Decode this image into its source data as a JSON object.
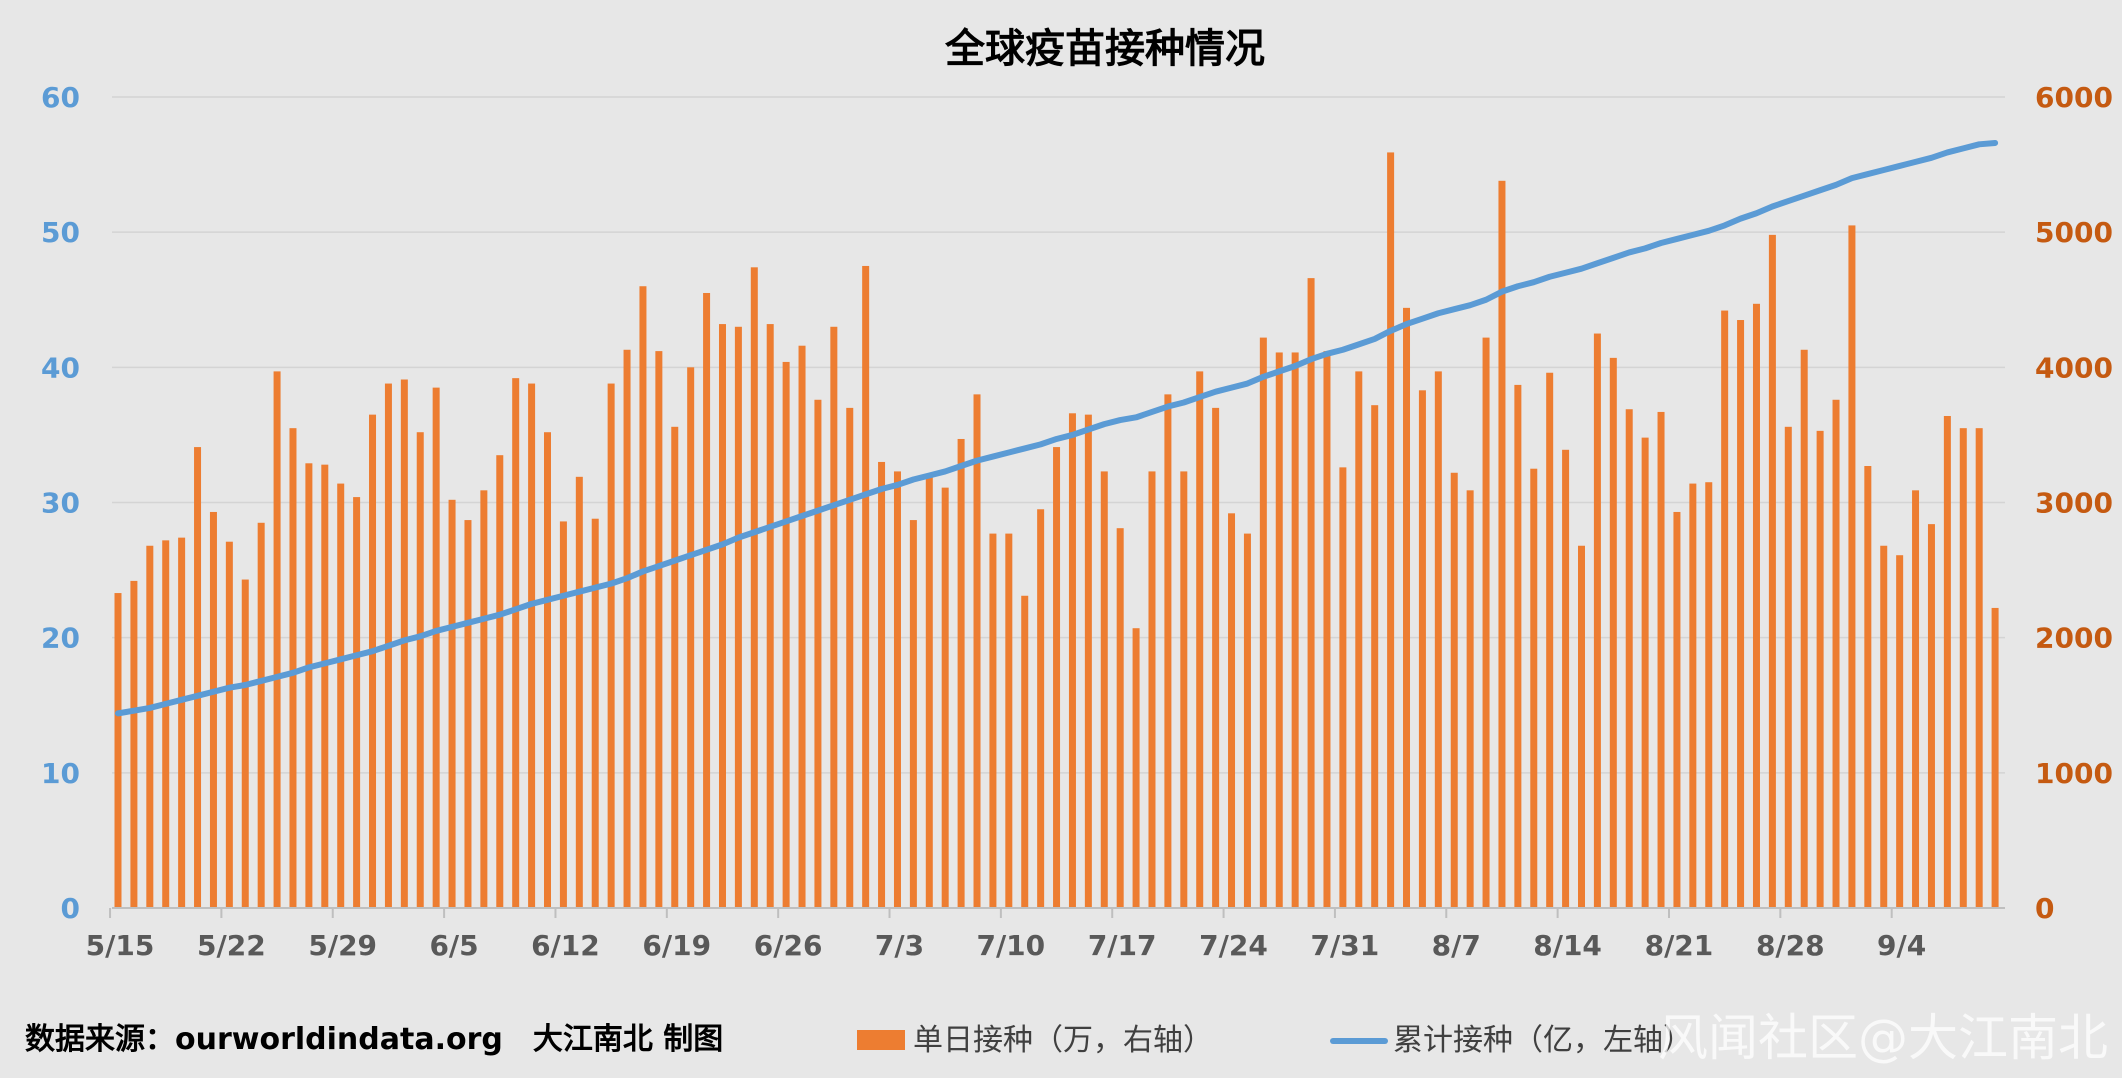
{
  "chart_data": {
    "type": "bar+line",
    "title": "全球疫苗接种情况",
    "source": "数据来源：ourworldindata.org　大江南北 制图",
    "watermark": "风闻社区@大江南北",
    "colors": {
      "bar": "#ed7d31",
      "line": "#5b9bd5",
      "left_axis": "#5b9bd5",
      "right_axis": "#c55a11",
      "grid": "#d4d4d4"
    },
    "left_axis": {
      "min": 0,
      "max": 60,
      "ticks": [
        "0",
        "10",
        "20",
        "30",
        "40",
        "50",
        "60"
      ]
    },
    "right_axis": {
      "min": 0,
      "max": 6000,
      "ticks": [
        "0",
        "1000",
        "2000",
        "3000",
        "4000",
        "5000",
        "6000"
      ]
    },
    "x_axis": {
      "start": "5/15",
      "tick_labels": [
        "5/15",
        "5/22",
        "5/29",
        "6/5",
        "6/12",
        "6/19",
        "6/26",
        "7/3",
        "7/10",
        "7/17",
        "7/24",
        "7/31",
        "8/7",
        "8/14",
        "8/21",
        "8/28",
        "9/4"
      ]
    },
    "series": [
      {
        "name": "单日接种（万，右轴）",
        "type": "bar",
        "axis": "right",
        "values": [
          2330,
          2420,
          2680,
          2720,
          2740,
          3410,
          2930,
          2710,
          2430,
          2850,
          3970,
          3550,
          3290,
          3280,
          3140,
          3040,
          3650,
          3880,
          3910,
          3520,
          3850,
          3020,
          2870,
          3090,
          3350,
          3920,
          3880,
          3520,
          2860,
          3190,
          2880,
          3880,
          4130,
          4600,
          4120,
          3560,
          4000,
          4550,
          4320,
          4300,
          4740,
          4320,
          4040,
          4160,
          3760,
          4300,
          3700,
          4750,
          3300,
          3230,
          2870,
          3200,
          3110,
          3470,
          3800,
          2770,
          2770,
          2310,
          2950,
          3410,
          3660,
          3650,
          3230,
          2810,
          2070,
          3230,
          3800,
          3230,
          3970,
          3700,
          2920,
          2770,
          4220,
          4110,
          4110,
          4660,
          4120,
          3260,
          3970,
          3720,
          5590,
          4440,
          3830,
          3970,
          3220,
          3090,
          4220,
          5380,
          3870,
          3250,
          3960,
          3390,
          2680,
          4250,
          4070,
          3690,
          3480,
          3670,
          2930,
          3140,
          3150,
          4420,
          4350,
          4470,
          4980,
          3560,
          4130,
          3530,
          3760,
          5050,
          3270,
          2680,
          2610,
          3090,
          2840,
          3640,
          3550,
          3550,
          2220
        ]
      },
      {
        "name": "累计接种（亿，左轴）",
        "type": "line",
        "axis": "left",
        "values": [
          14.4,
          14.6,
          14.8,
          15.1,
          15.4,
          15.7,
          16.0,
          16.3,
          16.5,
          16.8,
          17.1,
          17.4,
          17.8,
          18.1,
          18.4,
          18.7,
          19.0,
          19.4,
          19.8,
          20.1,
          20.5,
          20.8,
          21.1,
          21.4,
          21.7,
          22.1,
          22.5,
          22.8,
          23.1,
          23.4,
          23.7,
          24.0,
          24.4,
          24.9,
          25.3,
          25.7,
          26.1,
          26.5,
          26.9,
          27.4,
          27.8,
          28.2,
          28.6,
          29.0,
          29.4,
          29.8,
          30.2,
          30.6,
          31.0,
          31.3,
          31.7,
          32.0,
          32.3,
          32.7,
          33.1,
          33.4,
          33.7,
          34.0,
          34.3,
          34.7,
          35.0,
          35.4,
          35.8,
          36.1,
          36.3,
          36.7,
          37.1,
          37.4,
          37.8,
          38.2,
          38.5,
          38.8,
          39.3,
          39.7,
          40.1,
          40.6,
          41.0,
          41.3,
          41.7,
          42.1,
          42.7,
          43.2,
          43.6,
          44.0,
          44.3,
          44.6,
          45.0,
          45.6,
          46.0,
          46.3,
          46.7,
          47.0,
          47.3,
          47.7,
          48.1,
          48.5,
          48.8,
          49.2,
          49.5,
          49.8,
          50.1,
          50.5,
          51.0,
          51.4,
          51.9,
          52.3,
          52.7,
          53.1,
          53.5,
          54.0,
          54.3,
          54.6,
          54.9,
          55.2,
          55.5,
          55.9,
          56.2,
          56.5,
          56.6
        ]
      }
    ]
  }
}
